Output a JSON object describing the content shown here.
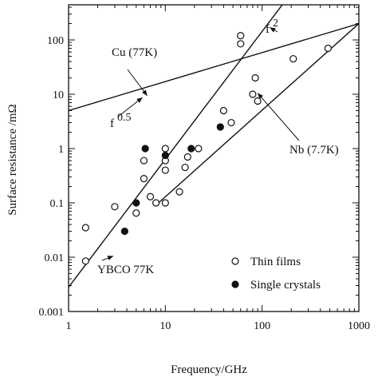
{
  "chart_data": {
    "type": "scatter",
    "xlabel": "Frequency/GHz",
    "ylabel": "Surface resistance /mΩ",
    "xscale": "log",
    "yscale": "log",
    "xlim": [
      1,
      1000
    ],
    "ylim": [
      0.001,
      500
    ],
    "x_ticks": [
      1,
      10,
      100,
      1000
    ],
    "x_tick_labels": [
      "1",
      "10",
      "100",
      "1000"
    ],
    "y_ticks": [
      0.001,
      0.01,
      0.1,
      1,
      10,
      100
    ],
    "y_tick_labels": [
      "0.001",
      "0.01",
      "0.1",
      "1",
      "10",
      "100"
    ],
    "grid": false,
    "legend_position": "bottom-right",
    "series": [
      {
        "name": "Thin films",
        "marker": "open-circle",
        "points": [
          [
            1.5,
            0.035
          ],
          [
            1.5,
            0.0085
          ],
          [
            3,
            0.085
          ],
          [
            5,
            0.065
          ],
          [
            6,
            0.28
          ],
          [
            6,
            0.6
          ],
          [
            7,
            0.13
          ],
          [
            8,
            0.1
          ],
          [
            10,
            0.1
          ],
          [
            10,
            1.0
          ],
          [
            10,
            0.4
          ],
          [
            10,
            0.6
          ],
          [
            14,
            0.16
          ],
          [
            16,
            0.45
          ],
          [
            17,
            0.7
          ],
          [
            22,
            1.0
          ],
          [
            40,
            5
          ],
          [
            48,
            3
          ],
          [
            60,
            120
          ],
          [
            60,
            85
          ],
          [
            80,
            10
          ],
          [
            85,
            20
          ],
          [
            90,
            7.5
          ],
          [
            210,
            45
          ],
          [
            480,
            70
          ]
        ]
      },
      {
        "name": "Single crystals",
        "marker": "filled-circle",
        "points": [
          [
            3.8,
            0.03
          ],
          [
            5,
            0.1
          ],
          [
            6.2,
            1.0
          ],
          [
            10,
            0.75
          ],
          [
            18.5,
            1.0
          ],
          [
            37,
            2.5
          ]
        ]
      }
    ],
    "lines": [
      {
        "label": "Cu (77K)",
        "points": [
          [
            1,
            5
          ],
          [
            1000,
            200
          ]
        ]
      },
      {
        "label": "Nb (7.7K)",
        "points": [
          [
            8.5,
            0.1
          ],
          [
            1000,
            200
          ]
        ]
      },
      {
        "label": "YBCO 77K",
        "points": [
          [
            1,
            0.0028
          ],
          [
            170,
            500
          ]
        ]
      }
    ],
    "annotations": [
      {
        "text": "Cu (77K)",
        "target": [
          6.5,
          9.4
        ]
      },
      {
        "text": "f",
        "sup": "0.5",
        "target": [
          5.8,
          8.7
        ]
      },
      {
        "text": "f",
        "sup": "2",
        "target": [
          120,
          170
        ]
      },
      {
        "text": "Nb (7.7K)",
        "target": [
          90,
          10.5
        ]
      },
      {
        "text": "YBCO 77K",
        "target": [
          2.9,
          0.0105
        ]
      }
    ]
  }
}
